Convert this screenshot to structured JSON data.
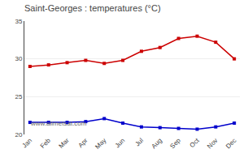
{
  "chart_data": {
    "type": "line",
    "title": "Saint-Georges : temperatures (°C)",
    "categories": [
      "Jan",
      "Feb",
      "Mar",
      "Apr",
      "May",
      "Jun",
      "Jul",
      "Aug",
      "Sep",
      "Oct",
      "Nov",
      "Dec"
    ],
    "series": [
      {
        "color": "#cc0000",
        "marker": "square",
        "values": [
          29.0,
          29.2,
          29.5,
          29.8,
          29.4,
          29.8,
          31.0,
          31.5,
          32.7,
          33.0,
          32.2,
          30.0
        ]
      },
      {
        "color": "#0000cc",
        "marker": "square",
        "values": [
          21.6,
          21.6,
          21.6,
          21.7,
          22.1,
          21.5,
          21.0,
          20.9,
          20.8,
          20.7,
          21.0,
          21.5
        ]
      }
    ],
    "ylim": [
      20,
      35
    ],
    "yticks": [
      20,
      25,
      30,
      35
    ],
    "grid": true,
    "annotations": [
      "www.allmetsat.com"
    ]
  }
}
